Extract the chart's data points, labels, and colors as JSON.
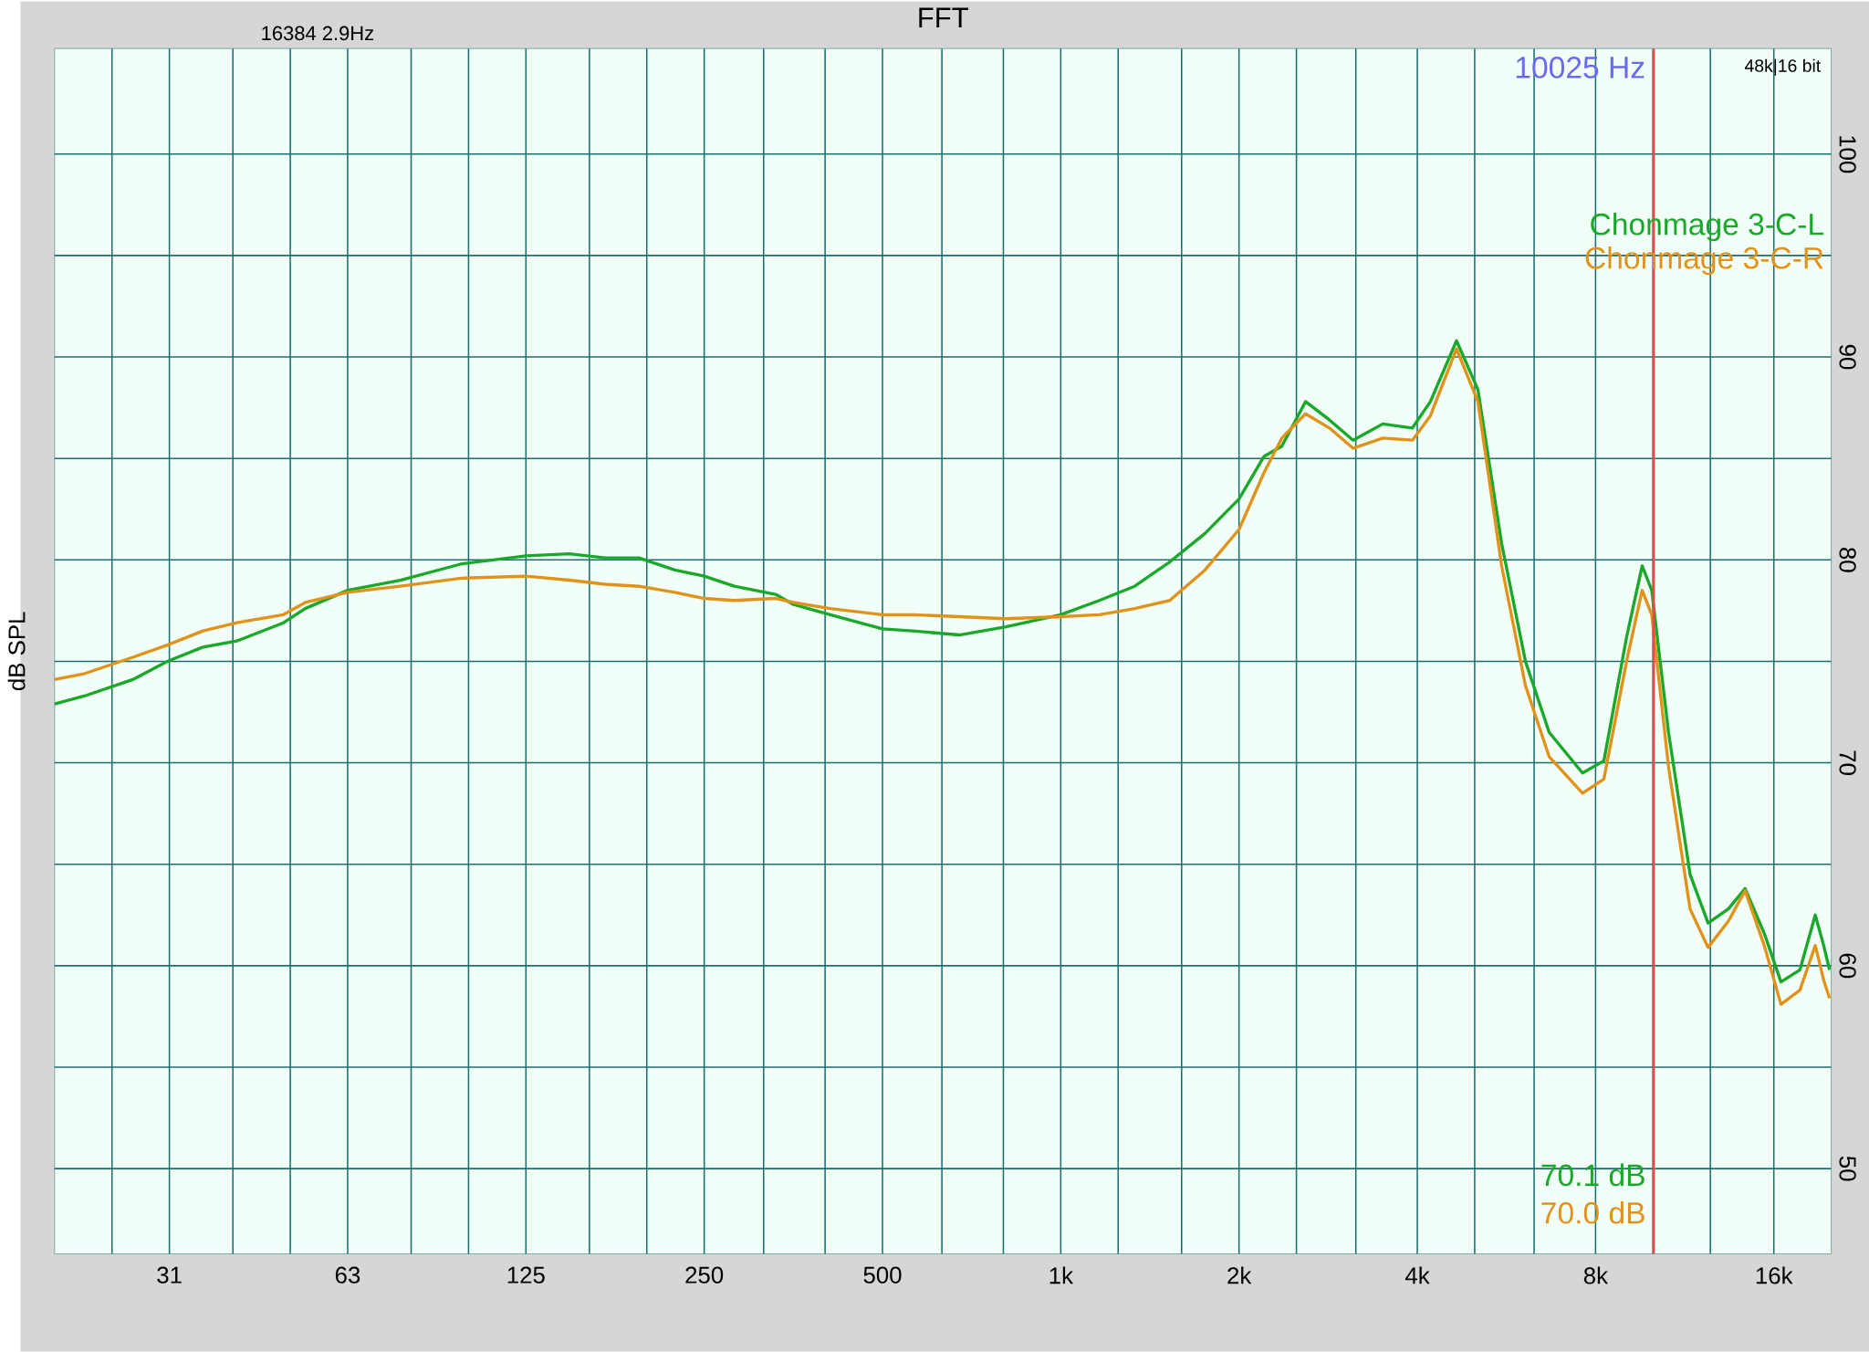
{
  "chart_data": {
    "type": "line",
    "title": "FFT",
    "ylabel": "dB SPL",
    "log": "x",
    "grid": true,
    "legend": "top right",
    "x": [
      20,
      22.5,
      27.1,
      31,
      35.6,
      40.6,
      48.7,
      53,
      62.5,
      76.7,
      97.2,
      125,
      148,
      170,
      194,
      223,
      250,
      281,
      330,
      354,
      408,
      500,
      562,
      674,
      808,
      1000,
      1162,
      1333,
      1528,
      1752,
      2000,
      2204,
      2362,
      2590,
      2842,
      3116,
      3498,
      3926,
      4209,
      4659,
      5063,
      5553,
      6091,
      6680,
      7604,
      8264,
      9026,
      9589,
      9953,
      10624,
      11552,
      12390,
      13408,
      14310,
      15414,
      16450,
      17710,
      18800,
      19420,
      19870
    ],
    "xlim": [
      20,
      20000
    ],
    "xticks": [
      {
        "value": 25,
        "label": null
      },
      {
        "value": 31.25,
        "label": "31"
      },
      {
        "value": 40,
        "label": null
      },
      {
        "value": 50,
        "label": null
      },
      {
        "value": 62.5,
        "label": "63"
      },
      {
        "value": 80,
        "label": null
      },
      {
        "value": 100,
        "label": null
      },
      125,
      {
        "value": 160,
        "label": null
      },
      {
        "value": 200,
        "label": null
      },
      250,
      {
        "value": 315,
        "label": null
      },
      {
        "value": 400,
        "label": null
      },
      500,
      {
        "value": 630,
        "label": null
      },
      {
        "value": 800,
        "label": null
      },
      {
        "value": 1000,
        "label": "1k"
      },
      {
        "value": 1250,
        "label": null
      },
      {
        "value": 1600,
        "label": null
      },
      {
        "value": 2000,
        "label": "2k"
      },
      {
        "value": 2500,
        "label": null
      },
      {
        "value": 3150,
        "label": null
      },
      {
        "value": 4000,
        "label": "4k"
      },
      {
        "value": 5000,
        "label": null
      },
      {
        "value": 6300,
        "label": null
      },
      {
        "value": 8000,
        "label": "8k"
      },
      {
        "value": 10000,
        "label": null
      },
      {
        "value": 12500,
        "label": null
      },
      {
        "value": 16000,
        "label": "16k"
      }
    ],
    "ylim": [
      45.8,
      105.2
    ],
    "yticks": [
      50,
      {
        "value": 55,
        "label": null
      },
      60,
      {
        "value": 65,
        "label": null
      },
      70,
      {
        "value": 75,
        "label": null
      },
      80,
      {
        "value": 85,
        "label": null
      },
      90,
      {
        "value": 95,
        "label": null
      },
      100
    ],
    "series": [
      {
        "name": "Chonmage 3-C-L",
        "color": "#1aa82a",
        "values": [
          72.9,
          73.3,
          74.1,
          75.0,
          75.7,
          76.0,
          76.9,
          77.6,
          78.5,
          79.0,
          79.8,
          80.2,
          80.3,
          80.1,
          80.1,
          79.5,
          79.2,
          78.7,
          78.3,
          77.8,
          77.3,
          76.6,
          76.5,
          76.3,
          76.7,
          77.3,
          78.0,
          78.7,
          79.9,
          81.3,
          83.0,
          85.1,
          85.6,
          87.8,
          86.9,
          85.9,
          86.7,
          86.5,
          87.8,
          90.8,
          88.4,
          80.8,
          75.0,
          71.5,
          69.5,
          70.1,
          76.2,
          79.7,
          78.5,
          71.5,
          64.5,
          62.1,
          62.8,
          63.8,
          61.6,
          59.2,
          59.8,
          62.5,
          61.0,
          59.8
        ]
      },
      {
        "name": "Chonmage 3-C-R",
        "color": "#e0921a",
        "values": [
          74.1,
          74.4,
          75.2,
          75.8,
          76.5,
          76.9,
          77.3,
          77.9,
          78.4,
          78.7,
          79.1,
          79.2,
          79.0,
          78.8,
          78.7,
          78.4,
          78.1,
          78.0,
          78.1,
          77.9,
          77.6,
          77.3,
          77.3,
          77.2,
          77.1,
          77.2,
          77.3,
          77.6,
          78.0,
          79.5,
          81.5,
          84.3,
          86.0,
          87.2,
          86.5,
          85.5,
          86.0,
          85.9,
          87.1,
          90.4,
          87.8,
          79.7,
          73.8,
          70.3,
          68.5,
          69.2,
          75.0,
          78.5,
          77.3,
          69.8,
          62.8,
          60.9,
          62.2,
          63.7,
          61.0,
          58.1,
          58.8,
          61.0,
          59.3,
          58.4
        ]
      }
    ],
    "ref_lines": [
      {
        "axis": "x",
        "value": 10025,
        "label": "10025 Hz",
        "color": "#e84a4a"
      }
    ],
    "annotations": [
      "16384  2.9Hz",
      "48k|16 bit",
      "70.1 dB",
      "70.0 dB"
    ]
  }
}
